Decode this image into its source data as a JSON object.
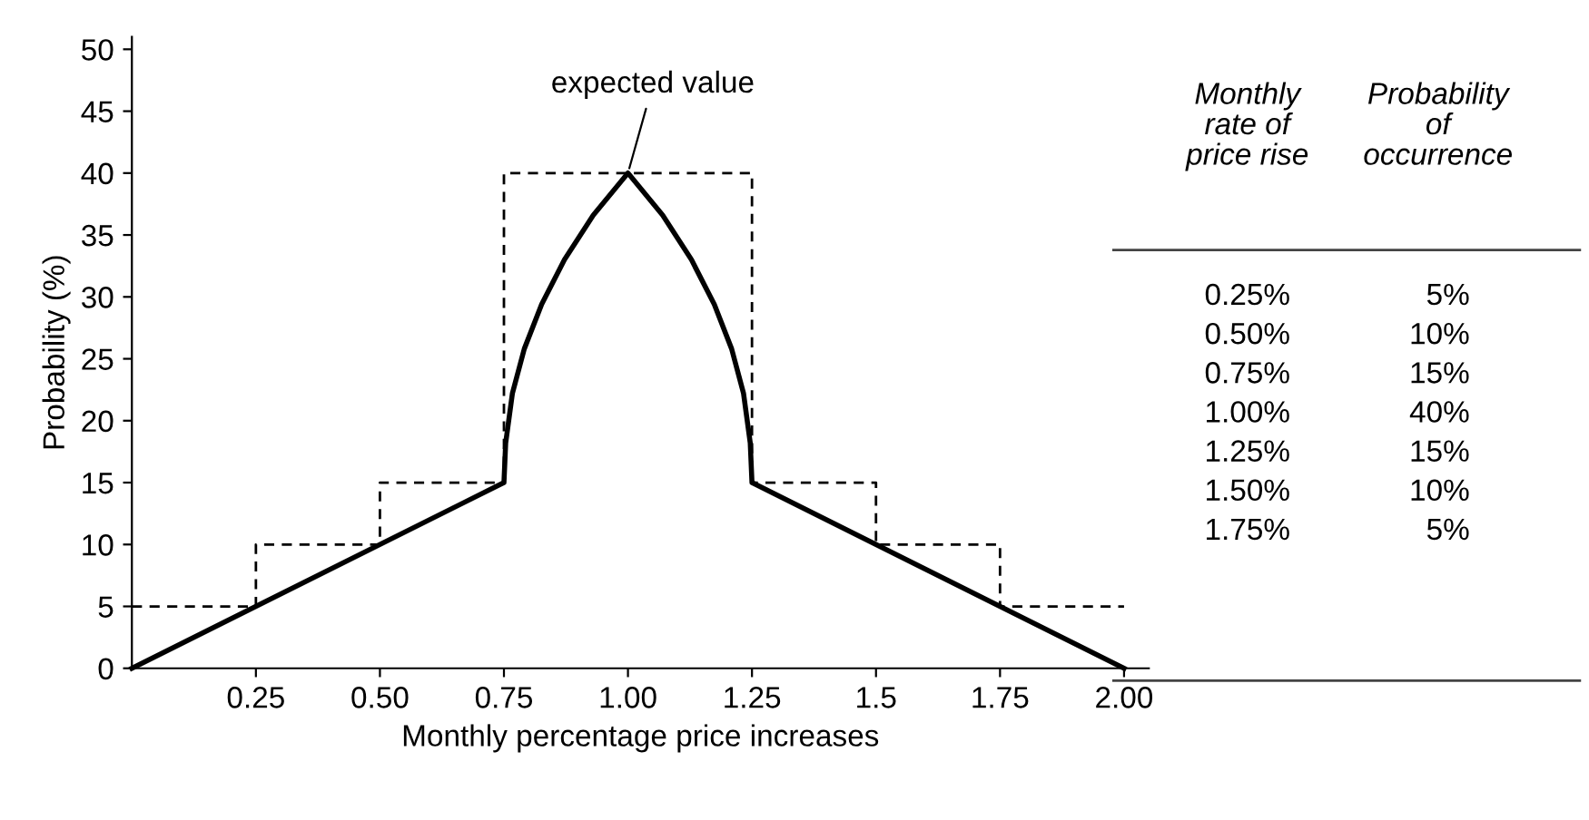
{
  "chart_data": {
    "type": "line",
    "xlabel": "Monthly percentage price increases",
    "ylabel": "Probability (%)",
    "xlim": [
      0,
      2.05
    ],
    "ylim": [
      0,
      51
    ],
    "xticks": [
      0.25,
      {
        "value": 0.5,
        "label": "0.50"
      },
      0.75,
      {
        "value": 1,
        "label": "1.00"
      },
      1.25,
      1.5,
      1.75,
      {
        "value": 2,
        "label": "2.00"
      }
    ],
    "yticks": [
      0,
      5,
      10,
      15,
      20,
      25,
      30,
      35,
      40,
      45,
      50
    ],
    "grid": false,
    "legend": false,
    "series": [
      {
        "type": "step",
        "color": "#000000",
        "line_style": "dashed",
        "x": [
          0,
          0.25,
          0.5,
          0.75,
          1.25,
          1.5,
          1.75,
          2.0
        ],
        "values": [
          5,
          10,
          15,
          40,
          15,
          10,
          5,
          5
        ]
      },
      {
        "color": "#000000",
        "line_style": "solid",
        "x": [
          0,
          0.75,
          0.7535,
          0.767,
          0.791,
          0.826,
          0.872,
          0.93,
          1.0,
          1.07,
          1.128,
          1.174,
          1.209,
          1.233,
          1.2465,
          1.25,
          2.0
        ],
        "values": [
          0,
          15,
          18.2,
          22.2,
          25.8,
          29.4,
          33.0,
          36.6,
          40,
          36.6,
          33.0,
          29.4,
          25.8,
          22.2,
          18.2,
          15,
          0
        ]
      }
    ],
    "annotations": [
      {
        "text": "expected value",
        "x": 1.0,
        "y": 40
      },
      "Monthly\nrate of\nprice rise",
      "Probability\nof\noccurrence",
      "0.25%\n0.50%\n0.75%\n1.00%\n1.25%\n1.50%\n1.75%",
      "5%\n10%\n15%\n40%\n15%\n10%\n5%"
    ]
  }
}
